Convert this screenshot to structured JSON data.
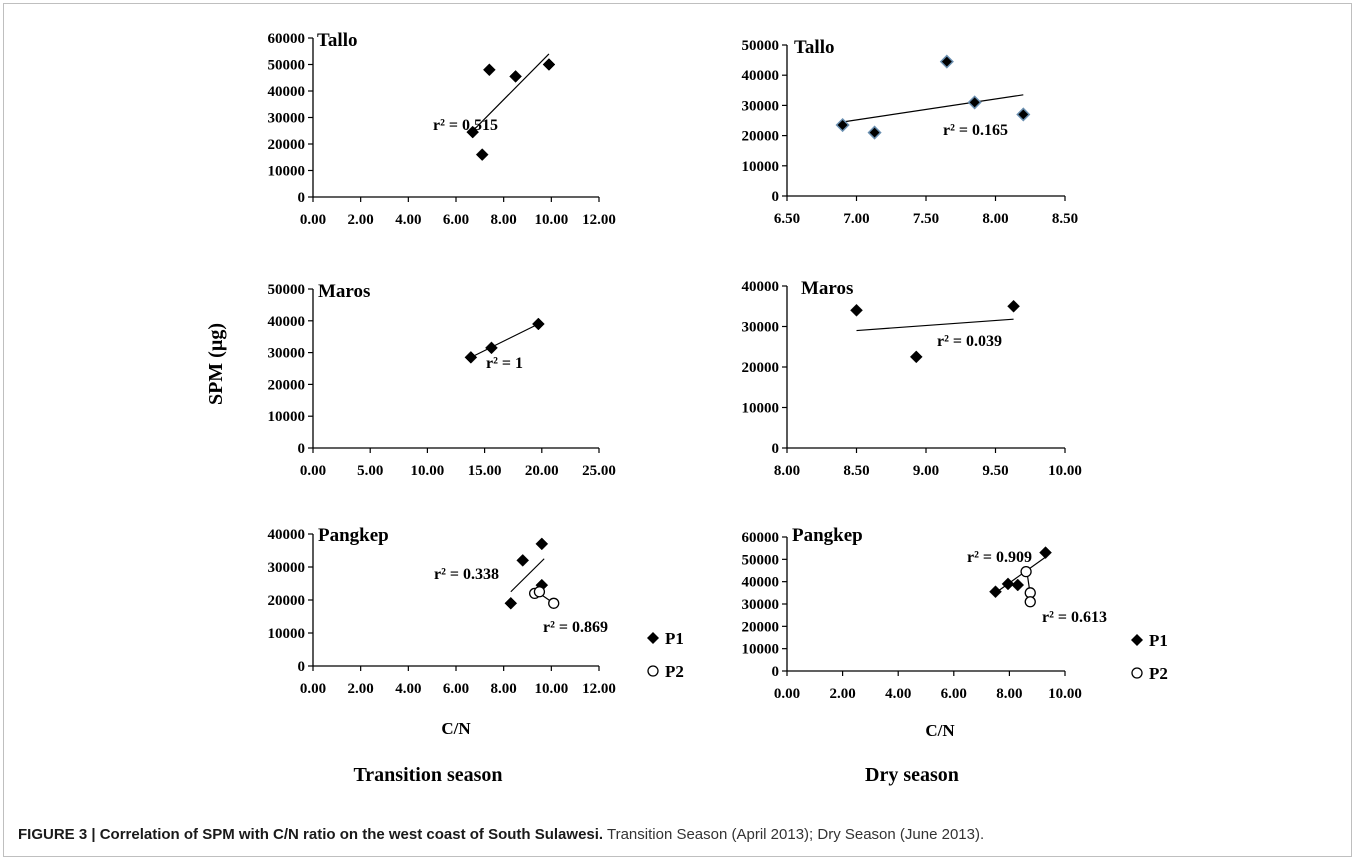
{
  "y_axis_title": "SPM (µg)",
  "x_axis_title": "C/N",
  "legend": [
    {
      "label": "P1",
      "marker": "diamond"
    },
    {
      "label": "P2",
      "marker": "circle"
    }
  ],
  "column_titles": [
    "Transition season",
    "Dry season"
  ],
  "caption": {
    "bold": "FIGURE 3 | Correlation of SPM with C/N ratio on the west coast of South Sulawesi.",
    "text": " Transition Season (April 2013); Dry Season (June 2013)."
  },
  "chart_data": [
    {
      "type": "scatter",
      "title": "Tallo",
      "season": "Transition season",
      "xlim": [
        0,
        12
      ],
      "ylim": [
        0,
        60000
      ],
      "xticks": [
        "0.00",
        "2.00",
        "4.00",
        "6.00",
        "8.00",
        "10.00",
        "12.00"
      ],
      "yticks": [
        "0",
        "10000",
        "20000",
        "30000",
        "40000",
        "50000",
        "60000"
      ],
      "series": [
        {
          "marker": "diamond",
          "x": [
            6.7,
            7.1,
            7.4,
            8.5,
            9.9
          ],
          "y": [
            24500,
            16000,
            48000,
            45500,
            50000
          ],
          "trend": {
            "x": [
              6.6,
              9.9
            ],
            "y": [
              24000,
              54000
            ]
          },
          "r2_label": "r² = 0.515"
        }
      ]
    },
    {
      "type": "scatter",
      "title": "Tallo",
      "season": "Dry season",
      "xlim": [
        6.5,
        8.5
      ],
      "ylim": [
        0,
        50000
      ],
      "xticks": [
        "6.50",
        "7.00",
        "7.50",
        "8.00",
        "8.50"
      ],
      "yticks": [
        "0",
        "10000",
        "20000",
        "30000",
        "40000",
        "50000"
      ],
      "series": [
        {
          "marker": "diamond",
          "edge": "#6a8fb0",
          "x": [
            6.9,
            7.13,
            7.65,
            7.85,
            8.2
          ],
          "y": [
            23500,
            21000,
            44500,
            31000,
            27000
          ],
          "trend": {
            "x": [
              6.9,
              8.2
            ],
            "y": [
              24500,
              33500
            ]
          },
          "r2_label": "r² = 0.165"
        }
      ]
    },
    {
      "type": "scatter",
      "title": "Maros",
      "season": "Transition season",
      "xlim": [
        0,
        25
      ],
      "ylim": [
        0,
        50000
      ],
      "xticks": [
        "0.00",
        "5.00",
        "10.00",
        "15.00",
        "20.00",
        "25.00"
      ],
      "yticks": [
        "0",
        "10000",
        "20000",
        "30000",
        "40000",
        "50000"
      ],
      "series": [
        {
          "marker": "diamond",
          "x": [
            13.8,
            15.6,
            19.7
          ],
          "y": [
            28500,
            31500,
            39000
          ],
          "trend": {
            "x": [
              13.8,
              19.7
            ],
            "y": [
              28500,
              39000
            ]
          },
          "r2_label": "r² = 1"
        }
      ]
    },
    {
      "type": "scatter",
      "title": "Maros",
      "season": "Dry season",
      "xlim": [
        8,
        10
      ],
      "ylim": [
        0,
        40000
      ],
      "xticks": [
        "8.00",
        "8.50",
        "9.00",
        "9.50",
        "10.00"
      ],
      "yticks": [
        "0",
        "10000",
        "20000",
        "30000",
        "40000"
      ],
      "series": [
        {
          "marker": "diamond",
          "x": [
            8.5,
            8.93,
            9.63
          ],
          "y": [
            34000,
            22500,
            35000
          ],
          "trend": {
            "x": [
              8.5,
              9.63
            ],
            "y": [
              29000,
              31800
            ]
          },
          "r2_label": "r² = 0.039"
        }
      ]
    },
    {
      "type": "scatter",
      "title": "Pangkep",
      "season": "Transition season",
      "xlim": [
        0,
        12
      ],
      "ylim": [
        0,
        40000
      ],
      "xticks": [
        "0.00",
        "2.00",
        "4.00",
        "6.00",
        "8.00",
        "10.00",
        "12.00"
      ],
      "yticks": [
        "0",
        "10000",
        "20000",
        "30000",
        "40000"
      ],
      "xlabel": "C/N",
      "series": [
        {
          "name": "P1",
          "marker": "diamond",
          "x": [
            8.3,
            8.8,
            9.6,
            9.6
          ],
          "y": [
            19000,
            32000,
            24500,
            37000
          ],
          "trend": {
            "x": [
              8.3,
              9.7
            ],
            "y": [
              22500,
              32500
            ]
          },
          "r2_label": "r² = 0.338"
        },
        {
          "name": "P2",
          "marker": "circle",
          "x": [
            9.3,
            9.5,
            10.1
          ],
          "y": [
            22000,
            22500,
            19000
          ],
          "trend": {
            "x": [
              9.3,
              10.1
            ],
            "y": [
              23000,
              19000
            ]
          },
          "r2_label": "r² = 0.869"
        }
      ]
    },
    {
      "type": "scatter",
      "title": "Pangkep",
      "season": "Dry season",
      "xlim": [
        0,
        10
      ],
      "ylim": [
        0,
        60000
      ],
      "xticks": [
        "0.00",
        "2.00",
        "4.00",
        "6.00",
        "8.00",
        "10.00"
      ],
      "yticks": [
        "0",
        "10000",
        "20000",
        "30000",
        "40000",
        "50000",
        "60000"
      ],
      "xlabel": "C/N",
      "series": [
        {
          "name": "P1",
          "marker": "diamond",
          "x": [
            7.5,
            7.95,
            8.3,
            9.3
          ],
          "y": [
            35500,
            39000,
            38500,
            53000
          ],
          "trend": {
            "x": [
              7.5,
              9.3
            ],
            "y": [
              35000,
              51000
            ]
          },
          "r2_label": "r² = 0.909"
        },
        {
          "name": "P2",
          "marker": "circle",
          "x": [
            8.6,
            8.75,
            8.75
          ],
          "y": [
            44500,
            35000,
            31000
          ],
          "trend": {
            "x": [
              8.6,
              8.8
            ],
            "y": [
              47000,
              30000
            ]
          },
          "r2_label": "r² = 0.613"
        }
      ]
    }
  ]
}
